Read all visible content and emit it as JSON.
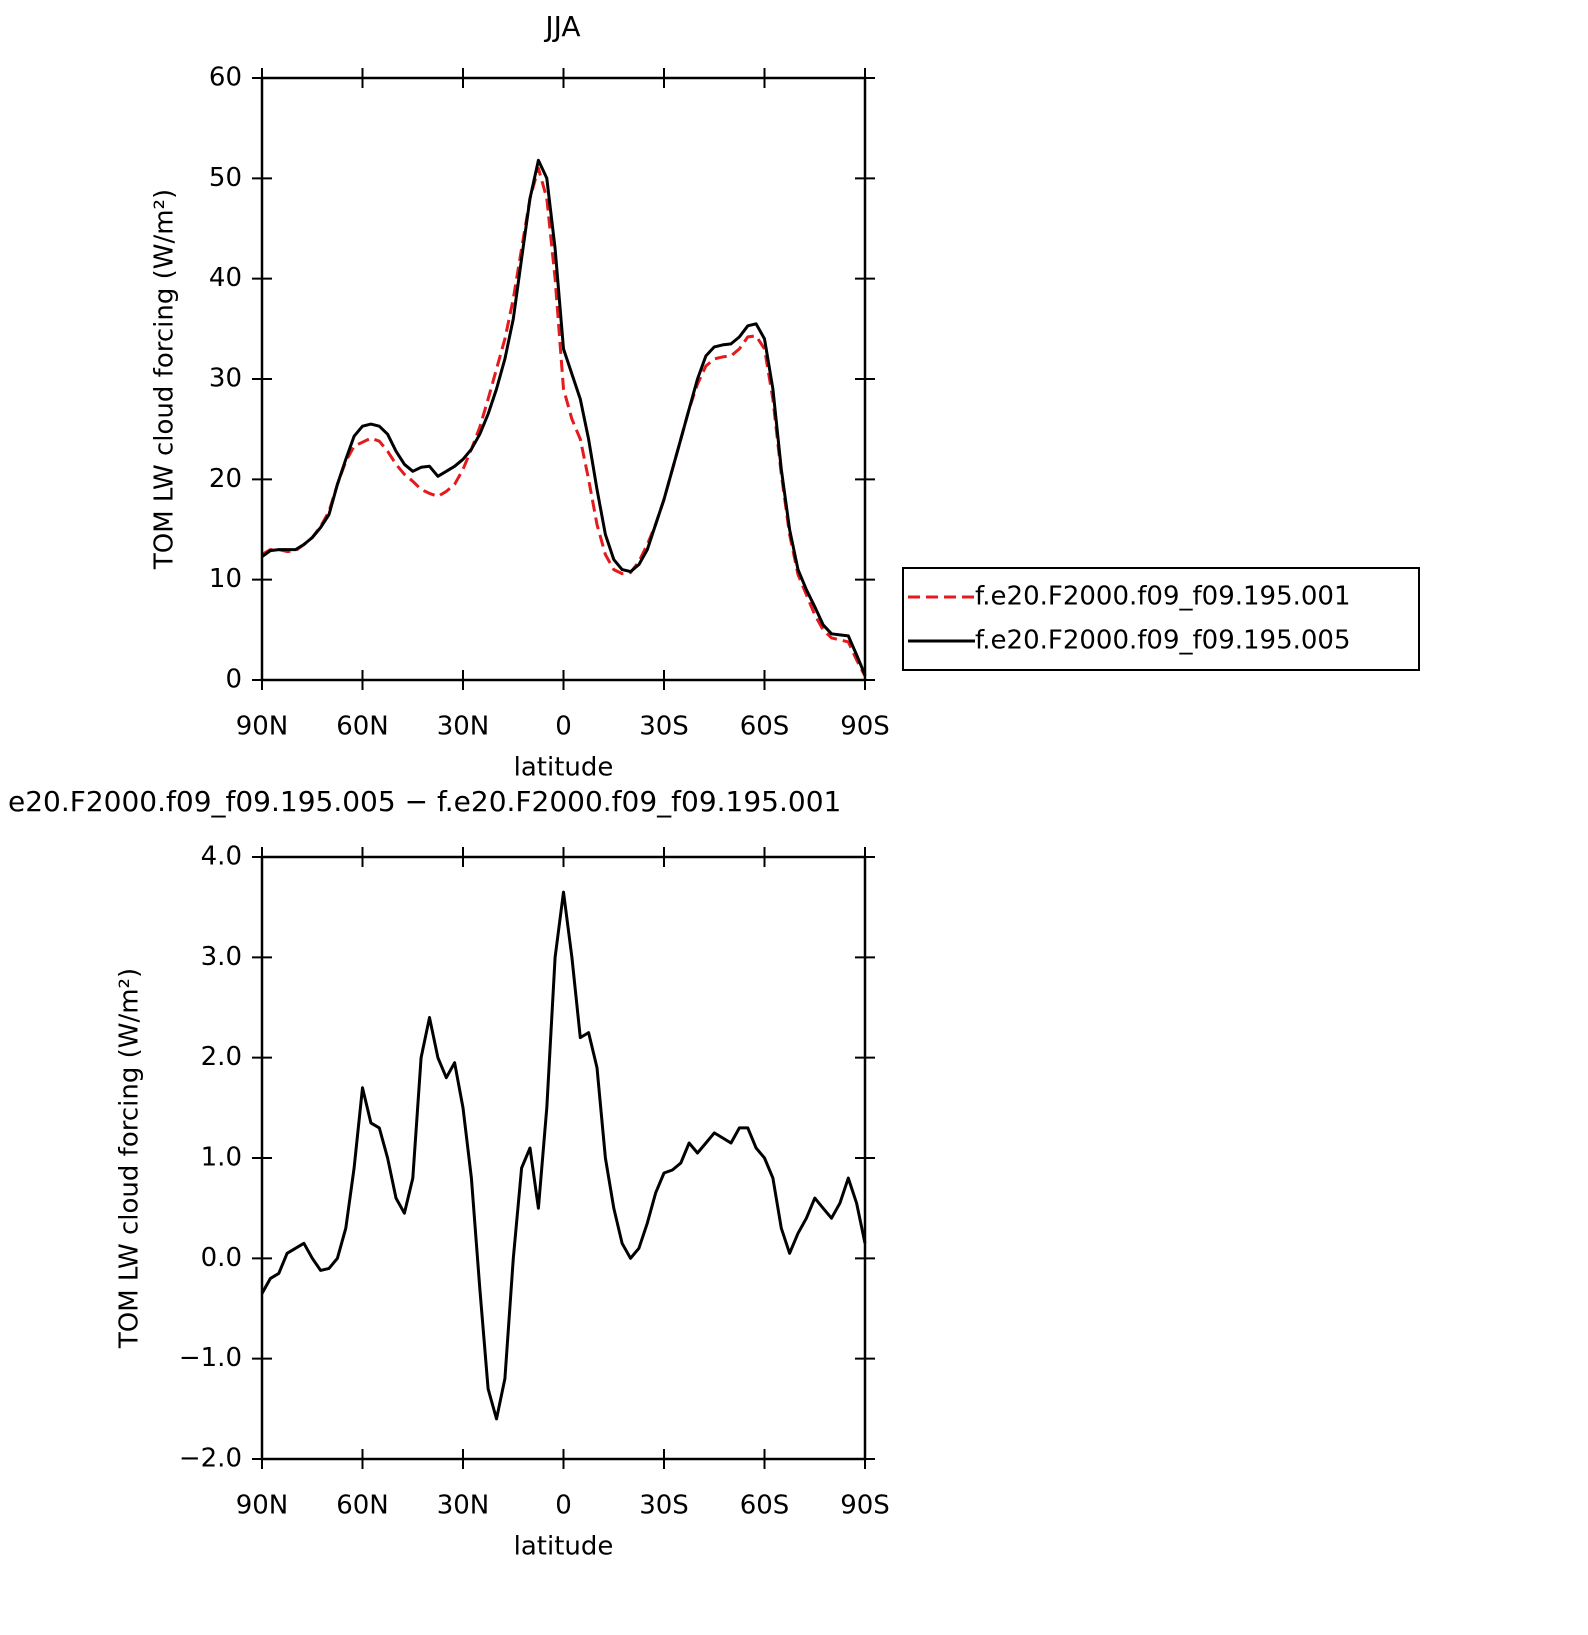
{
  "chart_data": [
    {
      "type": "line",
      "title": "JJA",
      "xlabel": "latitude",
      "ylabel": "TOM LW cloud forcing (W/m²)",
      "x": [
        90,
        87.5,
        85,
        82.5,
        80,
        77.5,
        75,
        72.5,
        70,
        67.5,
        65,
        62.5,
        60,
        57.5,
        55,
        52.5,
        50,
        47.5,
        45,
        42.5,
        40,
        37.5,
        35,
        32.5,
        30,
        27.5,
        25,
        22.5,
        20,
        17.5,
        15,
        12.5,
        10,
        7.5,
        5,
        2.5,
        0,
        -2.5,
        -5,
        -7.5,
        -10,
        -12.5,
        -15,
        -17.5,
        -20,
        -22.5,
        -25,
        -27.5,
        -30,
        -32.5,
        -35,
        -37.5,
        -40,
        -42.5,
        -45,
        -47.5,
        -50,
        -52.5,
        -55,
        -57.5,
        -60,
        -62.5,
        -65,
        -67.5,
        -70,
        -72.5,
        -75,
        -77.5,
        -80,
        -82.5,
        -85,
        -87.5,
        -90
      ],
      "xlim": [
        90,
        -90
      ],
      "xticks": [
        {
          "value": 90,
          "label": "90N"
        },
        {
          "value": 60,
          "label": "60N"
        },
        {
          "value": 30,
          "label": "30N"
        },
        0,
        {
          "value": -30,
          "label": "30S"
        },
        {
          "value": -60,
          "label": "60S"
        },
        {
          "value": -90,
          "label": "90S"
        }
      ],
      "ylim": [
        0,
        60
      ],
      "yticks": [
        0,
        10,
        20,
        30,
        40,
        50,
        60
      ],
      "legend": "right",
      "series": [
        {
          "name": "f.e20.F2000.f09_f09.195.001",
          "color": "#e41a1c",
          "linestyle": "dashed",
          "values": [
            12.5,
            13.0,
            13.0,
            12.8,
            12.9,
            13.5,
            14.2,
            15.3,
            16.8,
            19.5,
            21.8,
            23.3,
            23.7,
            24.1,
            23.8,
            22.8,
            21.5,
            20.5,
            19.8,
            19.0,
            18.6,
            18.3,
            18.8,
            19.5,
            21,
            23,
            25.2,
            28,
            31,
            34,
            38,
            43,
            48,
            51,
            48,
            40,
            29,
            26,
            24,
            20,
            15.5,
            12.5,
            11,
            10.6,
            10.7,
            11.8,
            13.5,
            15.5,
            18,
            21,
            24,
            27,
            29.5,
            31.3,
            32,
            32.2,
            32.3,
            33,
            34.2,
            34.3,
            33,
            28,
            20.5,
            14.5,
            10.5,
            8.5,
            6.5,
            5,
            4.2,
            4.0,
            3.8,
            2.0,
            0.4
          ]
        },
        {
          "name": "f.e20.F2000.f09_f09.195.005",
          "color": "#000000",
          "linestyle": "solid",
          "values": [
            12.3,
            12.9,
            13.0,
            13.0,
            13.0,
            13.5,
            14.2,
            15.2,
            16.5,
            19.5,
            22.0,
            24.3,
            25.3,
            25.5,
            25.3,
            24.5,
            22.8,
            21.5,
            20.8,
            21.2,
            21.3,
            20.3,
            20.8,
            21.3,
            22.0,
            23.0,
            24.5,
            26.5,
            29,
            32,
            36,
            42,
            48,
            51.8,
            50,
            43,
            33,
            30.5,
            28,
            24,
            19,
            14.5,
            12,
            11,
            10.8,
            11.5,
            13,
            15.5,
            18,
            21,
            24,
            27,
            30,
            32.3,
            33.2,
            33.4,
            33.5,
            34.2,
            35.3,
            35.5,
            34,
            29,
            21,
            15,
            11,
            9,
            7.3,
            5.5,
            4.6,
            4.5,
            4.4,
            2.5,
            0.5
          ]
        }
      ]
    },
    {
      "type": "line",
      "title": "e20.F2000.f09_f09.195.005 − f.e20.F2000.f09_f09.195.001",
      "xlabel": "latitude",
      "ylabel": "TOM LW cloud forcing (W/m²)",
      "x": [
        90,
        87.5,
        85,
        82.5,
        80,
        77.5,
        75,
        72.5,
        70,
        67.5,
        65,
        62.5,
        60,
        57.5,
        55,
        52.5,
        50,
        47.5,
        45,
        42.5,
        40,
        37.5,
        35,
        32.5,
        30,
        27.5,
        25,
        22.5,
        20,
        17.5,
        15,
        12.5,
        10,
        7.5,
        5,
        2.5,
        0,
        -2.5,
        -5,
        -7.5,
        -10,
        -12.5,
        -15,
        -17.5,
        -20,
        -22.5,
        -25,
        -27.5,
        -30,
        -32.5,
        -35,
        -37.5,
        -40,
        -42.5,
        -45,
        -47.5,
        -50,
        -52.5,
        -55,
        -57.5,
        -60,
        -62.5,
        -65,
        -67.5,
        -70,
        -72.5,
        -75,
        -77.5,
        -80,
        -82.5,
        -85,
        -87.5,
        -90
      ],
      "xlim": [
        90,
        -90
      ],
      "xticks": [
        {
          "value": 90,
          "label": "90N"
        },
        {
          "value": 60,
          "label": "60N"
        },
        {
          "value": 30,
          "label": "30N"
        },
        0,
        {
          "value": -30,
          "label": "30S"
        },
        {
          "value": -60,
          "label": "60S"
        },
        {
          "value": -90,
          "label": "90S"
        }
      ],
      "ylim": [
        -2,
        4
      ],
      "yticks": [
        {
          "value": -2,
          "label": "−2.0"
        },
        {
          "value": -1,
          "label": "−1.0"
        },
        {
          "value": 0,
          "label": "0.0"
        },
        {
          "value": 1,
          "label": "1.0"
        },
        {
          "value": 2,
          "label": "2.0"
        },
        {
          "value": 3,
          "label": "3.0"
        },
        {
          "value": 4,
          "label": "4.0"
        }
      ],
      "color": "#000000",
      "values": [
        -0.35,
        -0.2,
        -0.15,
        0.05,
        0.1,
        0.15,
        0.0,
        -0.12,
        -0.1,
        0.0,
        0.3,
        0.9,
        1.7,
        1.35,
        1.3,
        1.0,
        0.6,
        0.45,
        0.8,
        2.0,
        2.4,
        2.0,
        1.8,
        1.95,
        1.5,
        0.8,
        -0.3,
        -1.3,
        -1.6,
        -1.2,
        0.0,
        0.9,
        1.1,
        0.5,
        1.5,
        3.0,
        3.65,
        3.0,
        2.2,
        2.25,
        1.9,
        1.0,
        0.5,
        0.15,
        0.0,
        0.1,
        0.35,
        0.65,
        0.85,
        0.88,
        0.95,
        1.15,
        1.05,
        1.15,
        1.25,
        1.2,
        1.15,
        1.3,
        1.3,
        1.1,
        1.0,
        0.8,
        0.3,
        0.05,
        0.25,
        0.4,
        0.6,
        0.5,
        0.4,
        0.55,
        0.8,
        0.55,
        0.15
      ]
    }
  ]
}
